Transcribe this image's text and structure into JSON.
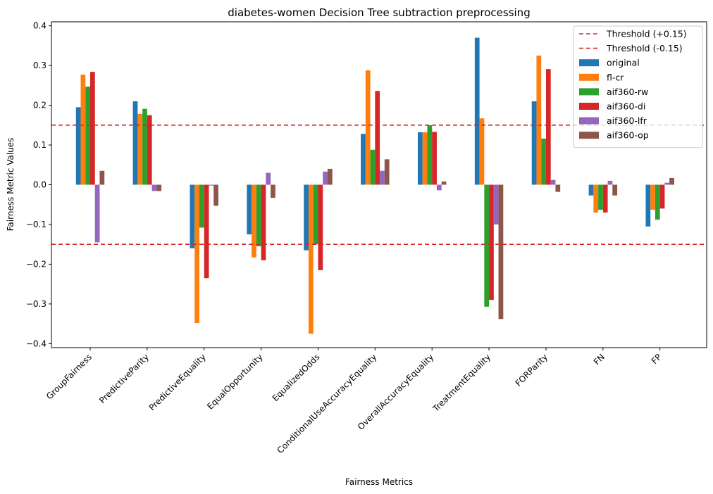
{
  "chart_data": {
    "type": "bar",
    "title": "diabetes-women Decision Tree subtraction preprocessing",
    "xlabel": "Fairness Metrics",
    "ylabel": "Fairness Metric Values",
    "ylim": [
      -0.41,
      0.41
    ],
    "yticks": [
      0.4,
      0.3,
      0.2,
      0.1,
      0.0,
      -0.1,
      -0.2,
      -0.3,
      -0.4
    ],
    "ytick_labels": [
      "0.4",
      "0.3",
      "0.2",
      "0.1",
      "0.0",
      "−0.1",
      "−0.2",
      "−0.3",
      "−0.4"
    ],
    "grid": false,
    "legend_position": "top-right",
    "categories": [
      "GroupFairness",
      "PredictiveParity",
      "PredictiveEquality",
      "EqualOpportunity",
      "EqualizedOdds",
      "ConditionalUseAccuracyEquality",
      "OverallAccuracyEquality",
      "TreatmentEquality",
      "FORParity",
      "FN",
      "FP"
    ],
    "thresholds": [
      {
        "name": "Threshold (+0.15)",
        "value": 0.15,
        "color": "#d62728"
      },
      {
        "name": "Threshold (-0.15)",
        "value": -0.15,
        "color": "#d62728"
      }
    ],
    "series": [
      {
        "name": "original",
        "color": "#1f77b4",
        "values": [
          0.195,
          0.21,
          -0.16,
          -0.125,
          -0.165,
          0.128,
          0.132,
          0.37,
          0.21,
          -0.027,
          -0.105
        ]
      },
      {
        "name": "fl-cr",
        "color": "#ff7f0e",
        "values": [
          0.277,
          0.178,
          -0.348,
          -0.183,
          -0.375,
          0.288,
          0.132,
          0.167,
          0.325,
          -0.07,
          -0.063
        ]
      },
      {
        "name": "aif360-rw",
        "color": "#2ca02c",
        "values": [
          0.247,
          0.191,
          -0.108,
          -0.155,
          -0.15,
          0.088,
          0.15,
          -0.307,
          0.116,
          -0.063,
          -0.088
        ]
      },
      {
        "name": "aif360-di",
        "color": "#d62728",
        "values": [
          0.284,
          0.175,
          -0.235,
          -0.19,
          -0.215,
          0.236,
          0.133,
          -0.29,
          0.291,
          -0.07,
          -0.06
        ]
      },
      {
        "name": "aif360-lfr",
        "color": "#9467bd",
        "values": [
          -0.145,
          -0.016,
          -0.002,
          0.03,
          0.033,
          0.035,
          -0.014,
          -0.1,
          0.012,
          0.01,
          0.005
        ]
      },
      {
        "name": "aif360-op",
        "color": "#8c564b",
        "values": [
          0.035,
          -0.016,
          -0.053,
          -0.033,
          0.04,
          0.064,
          0.008,
          -0.338,
          -0.018,
          -0.027,
          0.017
        ]
      }
    ]
  }
}
